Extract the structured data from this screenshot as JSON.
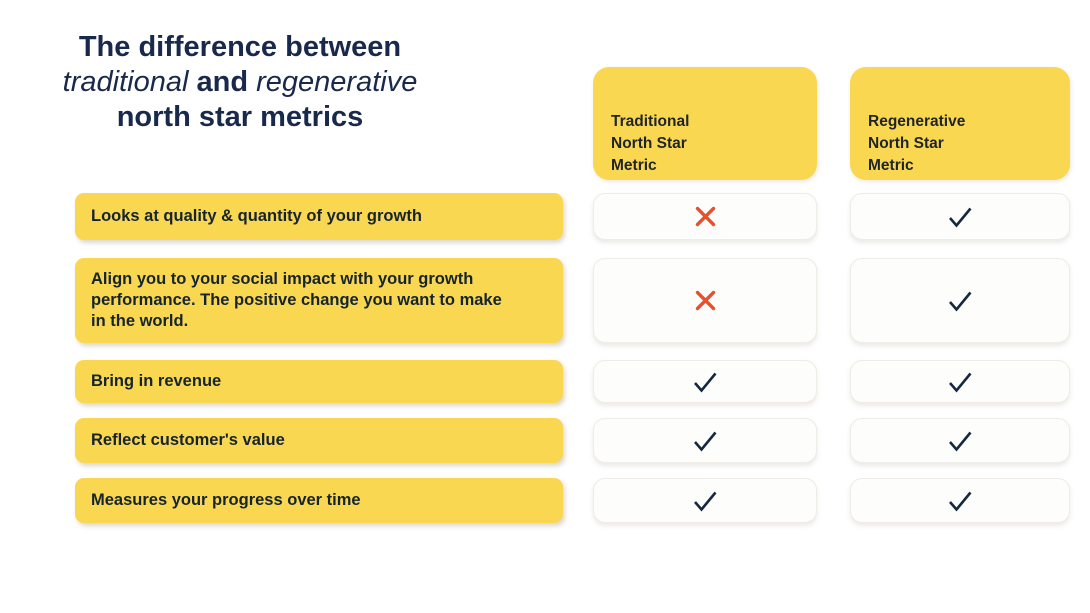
{
  "title": {
    "line1": "The difference between",
    "line2a": "traditional",
    "line2b": "and",
    "line2c": "regenerative",
    "line3": "north star metrics"
  },
  "columns": [
    {
      "id": "traditional",
      "label": "Traditional\nNorth Star\nMetric"
    },
    {
      "id": "regenerative",
      "label": "Regenerative\nNorth Star\nMetric"
    }
  ],
  "rows": [
    {
      "label": "Looks at quality & quantity of your growth",
      "traditional": "cross",
      "regenerative": "check"
    },
    {
      "label": "Align you to your social impact with your growth performance. The positive change you want to make in the world.",
      "traditional": "cross",
      "regenerative": "check"
    },
    {
      "label": "Bring in revenue",
      "traditional": "check",
      "regenerative": "check"
    },
    {
      "label": "Reflect customer's value",
      "traditional": "check",
      "regenerative": "check"
    },
    {
      "label": "Measures your progress over time",
      "traditional": "check",
      "regenerative": "check"
    }
  ],
  "marks": {
    "check": "✓",
    "cross": "✕"
  },
  "colors": {
    "yellow": "#F9D751",
    "title_navy": "#19294B",
    "label_text": "#15242E",
    "header_text": "#1F242A",
    "cross_orange": "#E8512B",
    "check_navy": "#16283E",
    "cell_bg": "#FDFDFC",
    "cell_border": "#EFEBE6"
  }
}
